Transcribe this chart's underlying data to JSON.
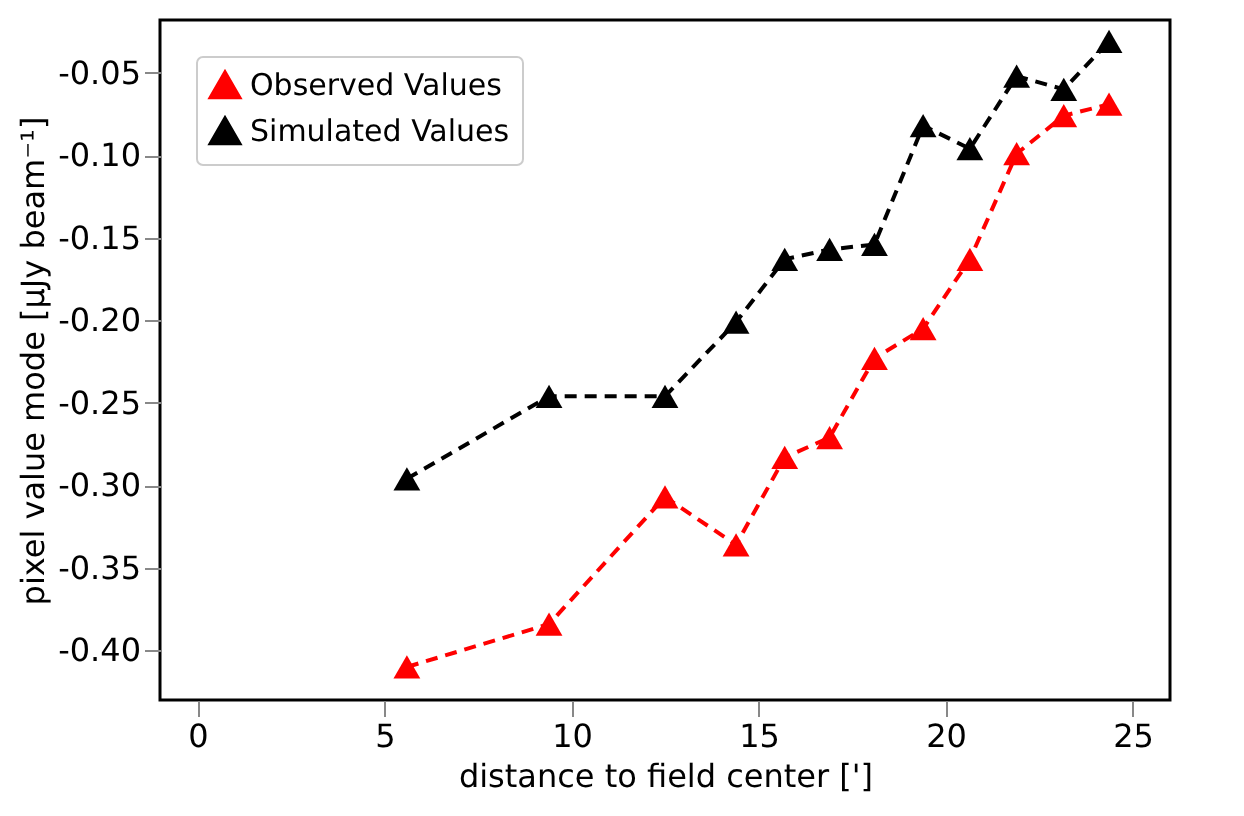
{
  "chart_data": {
    "type": "line",
    "xlabel": "distance to field center [']",
    "ylabel": "pixel value mode [μJy beam⁻¹]",
    "xlim": [
      -1,
      26
    ],
    "xticks": [
      0,
      5,
      10,
      15,
      20,
      25
    ],
    "ylim": [
      -0.43,
      -0.018
    ],
    "yticks": [
      {
        "value": -0.4,
        "label": "-0.40"
      },
      {
        "value": -0.35,
        "label": "-0.35"
      },
      {
        "value": -0.3,
        "label": "-0.30"
      },
      {
        "value": -0.25,
        "label": "-0.25"
      },
      {
        "value": -0.2,
        "label": "-0.20"
      },
      {
        "value": -0.15,
        "label": "-0.15"
      },
      {
        "value": -0.1,
        "label": "-0.10"
      },
      {
        "value": -0.05,
        "label": "-0.05"
      }
    ],
    "marker": "triangle",
    "line_style": "dashed",
    "legend": "top left",
    "grid": false,
    "x": [
      5.6,
      9.4,
      12.5,
      14.4,
      15.7,
      16.9,
      18.1,
      19.4,
      20.65,
      21.9,
      23.16,
      24.37
    ],
    "series": [
      {
        "name": "Observed Values",
        "color": "#ff0000",
        "values": [
          -0.41,
          -0.384,
          -0.307,
          -0.336,
          -0.283,
          -0.271,
          -0.223,
          -0.205,
          -0.163,
          -0.099,
          -0.076,
          -0.069
        ]
      },
      {
        "name": "Simulated Values",
        "color": "#000000",
        "values": [
          -0.296,
          -0.246,
          -0.246,
          -0.201,
          -0.163,
          -0.157,
          -0.154,
          -0.082,
          -0.096,
          -0.052,
          -0.06,
          -0.031
        ]
      }
    ]
  }
}
